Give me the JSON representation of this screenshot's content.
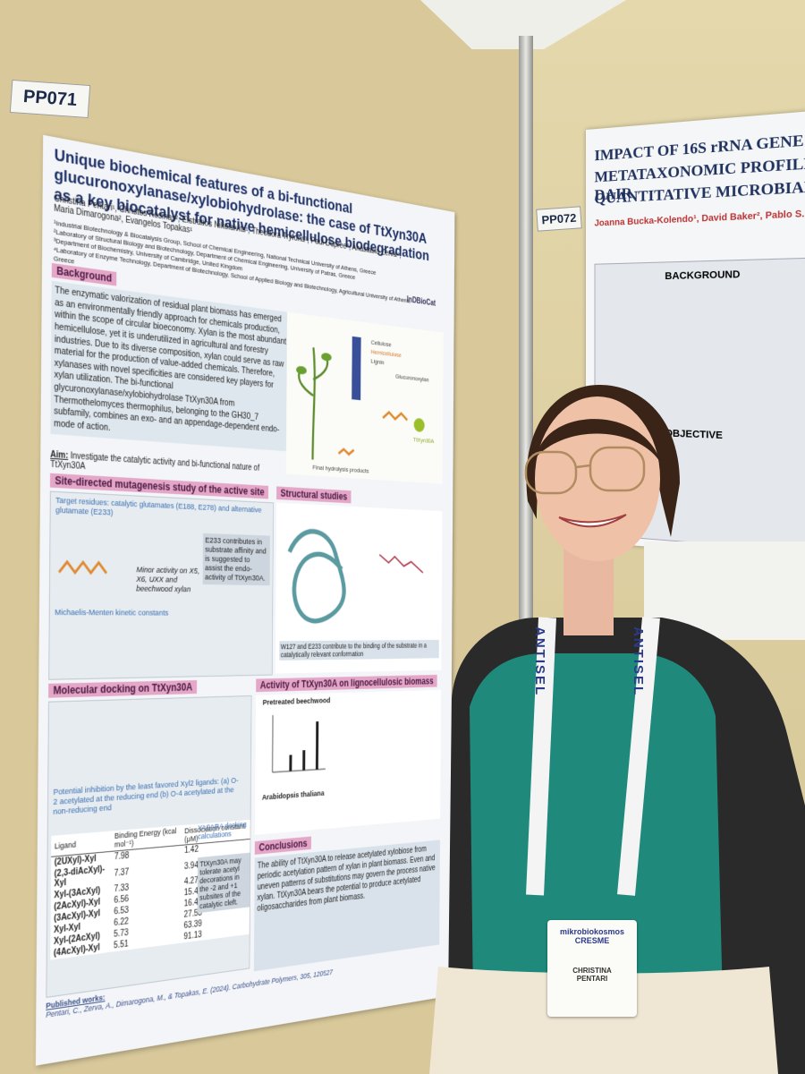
{
  "board_labels": {
    "left": "PP071",
    "right": "PP072"
  },
  "poster": {
    "title": "Unique biochemical features of a bi-functional glucuronoxylanase/xylobiohydrolase: the case of TtXyn30A as a key biocatalyst for native hemicellulose biodegradation",
    "authors": "Christina Pentari¹, Christos Kosinas², Efstratios Nikolaivits¹, Theodora Tryfona³, Paul Dupree³, Anastasia Zerva⁴, Maria Dimarogona², Evangelos Topakas¹",
    "affiliations": [
      "¹Industrial Biotechnology & Biocatalysis Group, School of Chemical Engineering, National Technical University of Athens, Greece",
      "²Laboratory of Structural Biology and Biotechnology, Department of Chemical Engineering, University of Patras, Greece",
      "³Department of Biochemistry, University of Cambridge, United Kingdom",
      "⁴Laboratory of Enzyme Technology, Department of Biotechnology, School of Applied Biology and Biotechnology, Agricultural University of Athens, Greece"
    ],
    "logo": "InDBioCat",
    "background": {
      "heading": "Background",
      "text": "The enzymatic valorization of residual plant biomass has emerged as an environmentally friendly approach for chemicals production, within the scope of circular bioeconomy. Xylan is the most abundant hemicellulose, yet it is underutilized in agricultural and forestry industries. Due to its diverse composition, xylan could serve as raw material for the production of value-added chemicals. Therefore, xylanases with novel specificities are considered key players for xylan utilization. The bi-functional glycuronoxylanase/xylobiohydrolase TtXyn30A from Thermothelomyces thermophilus, belonging to the GH30_7 subfamily, combines an exo- and an appendage-dependent endo-mode of action.",
      "aim_label": "Aim:",
      "aim": "Investigate the catalytic activity and bi-functional nature of TtXyn30A"
    },
    "figure_labels": [
      "Cellulose",
      "Hemicellulose",
      "Lignin",
      "Glucuronoxylan",
      "TtXyn30A",
      "Final hydrolysis products"
    ],
    "mutagenesis": {
      "heading": "Site-directed mutagenesis study of the active site",
      "targets": "Target residues: catalytic glutamates (E188, E278) and alternative glutamate (E233)",
      "note": "E233 contributes in substrate affinity and is suggested to assist the endo-activity of TtXyn30A.",
      "minor": "Minor activity on X5, X6, UXX and beechwood xylan",
      "kinetics": "Michaelis-Menten kinetic constants"
    },
    "structural": {
      "heading": "Structural studies",
      "caption": "W127 and E233 contribute to the binding of the substrate in a catalytically relevant conformation"
    },
    "docking": {
      "heading": "Molecular docking on TtXyn30A",
      "inhibition": "Potential inhibition by the least favored Xyl2 ligands: (a) O-2 acetylated at the reducing end (b) O-4 acetylated at the non-reducing end",
      "method": "YASARA docking calculations",
      "note": "TtXyn30A may tolerate acetyl decorations in the -2 and +1 subsites of the catalytic cleft.",
      "table": {
        "header": [
          "Ligand",
          "Binding Energy (kcal mol⁻¹)",
          "Dissociation constant (μM)"
        ],
        "rows": [
          [
            "(2UXyl)-Xyl",
            "7.98",
            "1.42"
          ],
          [
            "(2,3-diAcXyl)-Xyl",
            "7.37",
            "3.94"
          ],
          [
            "Xyl-(3AcXyl)",
            "7.33",
            "4.27"
          ],
          [
            "(2AcXyl)-Xyl",
            "6.56",
            "15.48"
          ],
          [
            "(3AcXyl)-Xyl",
            "6.53",
            "16.43"
          ],
          [
            "Xyl-Xyl",
            "6.22",
            "27.53"
          ],
          [
            "Xyl-(2AcXyl)",
            "5.73",
            "63.39"
          ],
          [
            "(4AcXyl)-Xyl",
            "5.51",
            "91.13"
          ]
        ]
      }
    },
    "activity": {
      "heading": "Activity of TtXyn30A on lignocellulosic biomass",
      "sub1": "Pretreated beechwood",
      "sub2": "Arabidopsis thaliana"
    },
    "conclusions": {
      "heading": "Conclusions",
      "text": "The ability of TtXyn30A to release acetylated xylobiose from periodic acetylation pattern of xylan in plant biomass. Even and uneven patterns of substitutions may govern the process native xylan. TtXyn30A bears the potential to produce acetylated oligosaccharides from plant biomass."
    },
    "published": {
      "heading": "Published works:",
      "text": "Pentari, C., Zerva, A., Dimarogona, M., & Topakas, E. (2024). Carbohydrate Polymers, 305, 120527"
    }
  },
  "right_poster": {
    "title": [
      "IMPACT OF 16S rRNA GENE S",
      "METATAXONOMIC PROFILES IN DAIR",
      "QUANTITATIVE MICROBIAL"
    ],
    "authors": "Joanna Bucka-Kolendo¹, David Baker², Pablo S. Ferná",
    "sections": [
      "BACKGROUND",
      "OBJECTIVE"
    ]
  },
  "lanyard": "ANTISEL",
  "badge": {
    "event": "mikrobiokosmos CRESME",
    "first_name": "CHRISTINA",
    "last_name": "PENTARI"
  }
}
